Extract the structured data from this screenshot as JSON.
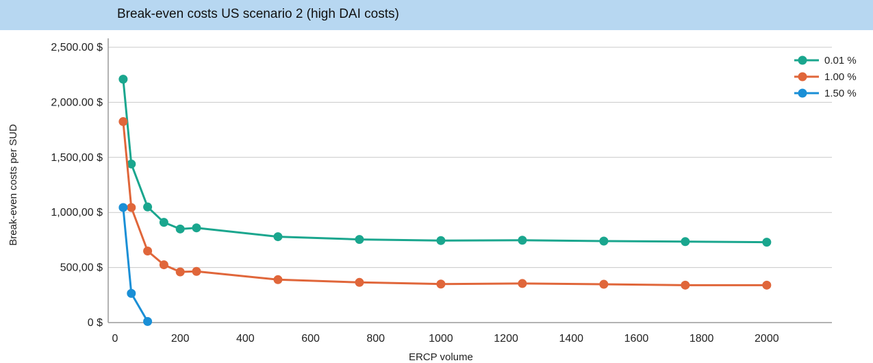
{
  "title": "Break-even costs US scenario 2 (high DAI costs)",
  "chart_data": {
    "type": "line",
    "title": "Break-even costs US scenario 2 (high DAI costs)",
    "xlabel": "ERCP volume",
    "ylabel": "Break-even costs per SUD",
    "xlim": [
      0,
      2200
    ],
    "ylim": [
      0,
      2500
    ],
    "x_ticks": [
      {
        "value": 0,
        "label": "0"
      },
      {
        "value": 200,
        "label": "200"
      },
      {
        "value": 400,
        "label": "400"
      },
      {
        "value": 600,
        "label": "600"
      },
      {
        "value": 800,
        "label": "800"
      },
      {
        "value": 1000,
        "label": "1000"
      },
      {
        "value": 1200,
        "label": "1200"
      },
      {
        "value": 1400,
        "label": "1400"
      },
      {
        "value": 1600,
        "label": "1600"
      },
      {
        "value": 1800,
        "label": "1800"
      },
      {
        "value": 2000,
        "label": "2000"
      }
    ],
    "y_ticks": [
      {
        "value": 0,
        "label": "0 $"
      },
      {
        "value": 500,
        "label": "500,00 $"
      },
      {
        "value": 1000,
        "label": "1,000,00 $"
      },
      {
        "value": 1500,
        "label": "1,500,00 $"
      },
      {
        "value": 2000,
        "label": "2,000.00 $"
      },
      {
        "value": 2500,
        "label": "2,500.00 $"
      }
    ],
    "grid": true,
    "legend_position": "top-right",
    "series": [
      {
        "name": "0.01 %",
        "color": "#1aa68e",
        "x": [
          25,
          50,
          100,
          150,
          200,
          250,
          500,
          750,
          1000,
          1250,
          1500,
          1750,
          2000
        ],
        "y": [
          2210,
          1440,
          1050,
          910,
          850,
          860,
          780,
          755,
          745,
          748,
          740,
          735,
          730
        ]
      },
      {
        "name": "1.00 %",
        "color": "#e0663a",
        "x": [
          25,
          50,
          100,
          150,
          200,
          250,
          500,
          750,
          1000,
          1250,
          1500,
          1750,
          2000
        ],
        "y": [
          1825,
          1045,
          650,
          525,
          460,
          465,
          390,
          365,
          350,
          355,
          348,
          340,
          340
        ]
      },
      {
        "name": "1.50 %",
        "color": "#1a8fd6",
        "x": [
          25,
          50,
          100
        ],
        "y": [
          1045,
          265,
          10
        ]
      }
    ]
  }
}
